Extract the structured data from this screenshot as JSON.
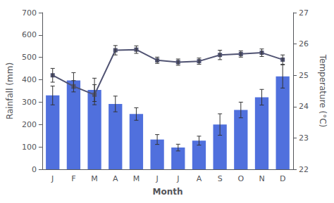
{
  "chart_data": {
    "type": "bar",
    "xlabel": "Month",
    "ylabel": "Rainfall (mm)",
    "y2label": "Temperature (°C)",
    "categories": [
      "J",
      "F",
      "M",
      "A",
      "M",
      "J",
      "J",
      "A",
      "S",
      "O",
      "N",
      "D"
    ],
    "series": [
      {
        "type": "bar",
        "values": [
          330,
          397,
          355,
          292,
          247,
          133,
          97,
          128,
          200,
          265,
          322,
          415
        ],
        "error": [
          42,
          35,
          52,
          35,
          28,
          22,
          15,
          20,
          48,
          35,
          35,
          52
        ]
      },
      {
        "type": "line",
        "axis": "y2",
        "marker": "square",
        "values": [
          25.0,
          24.65,
          24.38,
          25.8,
          25.82,
          25.48,
          25.42,
          25.45,
          25.65,
          25.68,
          25.72,
          25.5
        ],
        "error": [
          0.22,
          0.18,
          0.32,
          0.15,
          0.12,
          0.1,
          0.1,
          0.1,
          0.15,
          0.1,
          0.12,
          0.15
        ]
      }
    ],
    "ylim": [
      0,
      700
    ],
    "yticks": [
      0,
      100,
      200,
      300,
      400,
      500,
      600,
      700
    ],
    "y2lim": [
      22,
      27
    ],
    "y2ticks": [
      22,
      23,
      24,
      25,
      26,
      27
    ],
    "grid": false
  }
}
